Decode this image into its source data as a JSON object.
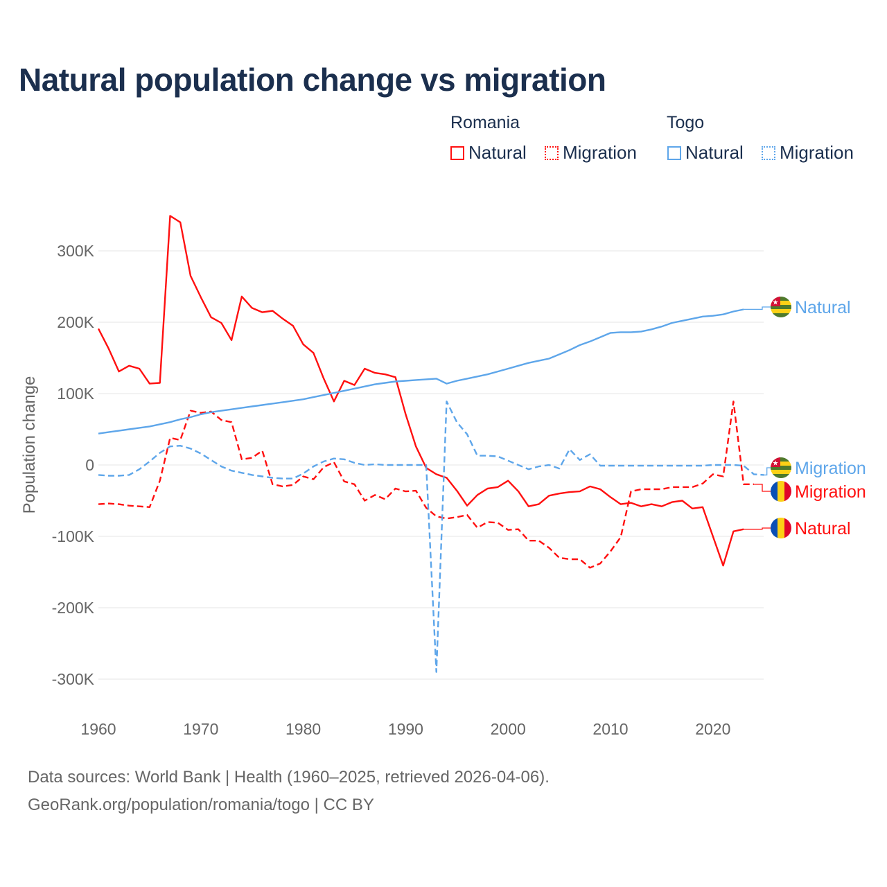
{
  "chart_data": {
    "type": "line",
    "title": "Natural population change vs migration",
    "ylabel": "Population change",
    "xlabel": "",
    "xlim": [
      1960,
      2025
    ],
    "ylim": [
      -300000,
      300000
    ],
    "x_ticks": [
      1960,
      1970,
      1980,
      1990,
      2000,
      2010,
      2020
    ],
    "x_tick_labels": [
      "1960",
      "1970",
      "1980",
      "1990",
      "2000",
      "2010",
      "2020"
    ],
    "y_ticks": [
      300000,
      200000,
      100000,
      0,
      -100000,
      -200000,
      -300000
    ],
    "y_tick_labels": [
      "300K",
      "200K",
      "100K",
      "0",
      "-100K",
      "-200K",
      "-300K"
    ],
    "grid": true,
    "legend": {
      "placement": "top-right",
      "groups": [
        {
          "name": "Romania",
          "items": [
            "Natural",
            "Migration"
          ]
        },
        {
          "name": "Togo",
          "items": [
            "Natural",
            "Migration"
          ]
        }
      ]
    },
    "colors": {
      "Romania": "#ff1010",
      "Togo": "#5ea6ea"
    },
    "series": [
      {
        "name": "Romania Natural",
        "country": "Romania",
        "kind": "Natural",
        "dashed": false,
        "start_year": 1960,
        "end_label": "Natural",
        "values": [
          191,
          163,
          131,
          139,
          135,
          114,
          115,
          349,
          340,
          265,
          235,
          207,
          199,
          175,
          236,
          220,
          214,
          216,
          205,
          195,
          169,
          157,
          121,
          89,
          118,
          112,
          135,
          129,
          127,
          123,
          71,
          26,
          -4,
          -13,
          -18,
          -36,
          -57,
          -42,
          -33,
          -31,
          -22,
          -37,
          -58,
          -55,
          -43,
          -40,
          -38,
          -37,
          -30,
          -34,
          -45,
          -55,
          -53,
          -58,
          -55,
          -58,
          -52,
          -50,
          -61,
          -59,
          -100,
          -141,
          -93,
          -90
        ]
      },
      {
        "name": "Romania Migration",
        "country": "Romania",
        "kind": "Migration",
        "dashed": true,
        "start_year": 1960,
        "end_label": "Migration",
        "values": [
          -55,
          -54,
          -55,
          -57,
          -58,
          -59,
          -22,
          38,
          35,
          76,
          73,
          75,
          63,
          60,
          8,
          10,
          20,
          -27,
          -30,
          -28,
          -16,
          -20,
          -3,
          4,
          -23,
          -27,
          -50,
          -42,
          -48,
          -33,
          -37,
          -36,
          -60,
          -72,
          -75,
          -73,
          -70,
          -88,
          -80,
          -81,
          -91,
          -90,
          -106,
          -106,
          -116,
          -130,
          -132,
          -132,
          -144,
          -138,
          -121,
          -101,
          -37,
          -34,
          -34,
          -34,
          -31,
          -31,
          -31,
          -26,
          -13,
          -16,
          89,
          -27,
          -27
        ]
      },
      {
        "name": "Togo Natural",
        "country": "Togo",
        "kind": "Natural",
        "dashed": false,
        "start_year": 1960,
        "end_label": "Natural",
        "values": [
          44,
          46,
          48,
          50,
          52,
          54,
          57,
          60,
          64,
          67,
          71,
          74,
          76,
          78,
          80,
          82,
          84,
          86,
          88,
          90,
          92,
          95,
          98,
          101,
          104,
          107,
          110,
          113,
          115,
          117,
          118,
          119,
          120,
          121,
          114,
          118,
          121,
          124,
          127,
          131,
          135,
          139,
          143,
          146,
          149,
          155,
          161,
          168,
          173,
          179,
          185,
          186,
          186,
          187,
          190,
          194,
          199,
          202,
          205,
          208,
          209,
          211,
          215,
          218
        ]
      },
      {
        "name": "Togo Migration",
        "country": "Togo",
        "kind": "Migration",
        "dashed": true,
        "start_year": 1960,
        "end_label": "Migration",
        "values": [
          -14,
          -15,
          -15,
          -14,
          -6,
          5,
          17,
          26,
          27,
          23,
          16,
          7,
          -2,
          -8,
          -11,
          -14,
          -16,
          -18,
          -19,
          -19,
          -12,
          -2,
          5,
          9,
          8,
          3,
          0,
          1,
          0,
          0,
          0,
          0,
          0,
          -290,
          89,
          60,
          43,
          13,
          13,
          12,
          6,
          0,
          -6,
          -2,
          0,
          -5,
          22,
          7,
          15,
          -1,
          -1,
          -1,
          -1,
          -1,
          -1,
          -1,
          -1,
          -1,
          -1,
          -1,
          0,
          0,
          0,
          -1,
          -13,
          -14
        ]
      }
    ],
    "value_unit": "thousands"
  },
  "footer": {
    "line1": "Data sources: World Bank | Health (1960–2025, retrieved 2026-04-06).",
    "line2": "GeoRank.org/population/romania/togo | CC BY"
  }
}
